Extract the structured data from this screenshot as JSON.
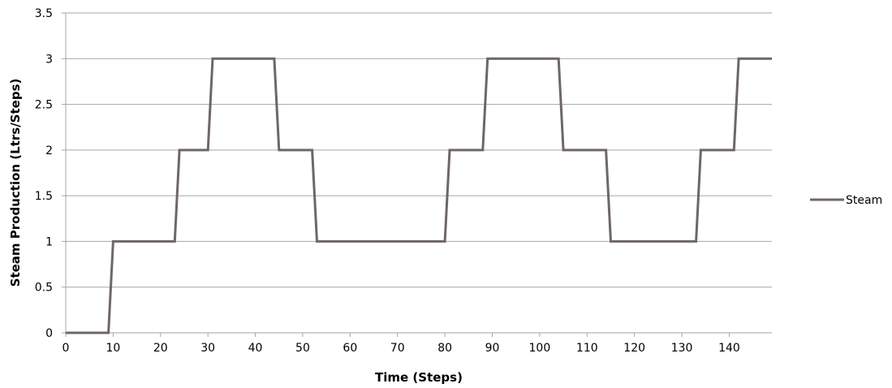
{
  "chart_data": {
    "type": "line",
    "title": "",
    "xlabel": "Time (Steps)",
    "ylabel": "Steam Production (Ltrs/Steps)",
    "xlim": [
      0,
      149
    ],
    "ylim": [
      0,
      3.5
    ],
    "x_ticks": [
      0,
      10,
      20,
      30,
      40,
      50,
      60,
      70,
      80,
      90,
      100,
      110,
      120,
      130,
      140
    ],
    "y_ticks": [
      0,
      0.5,
      1,
      1.5,
      2,
      2.5,
      3,
      3.5
    ],
    "x_tick_labels": [
      "0",
      "10",
      "20",
      "30",
      "40",
      "50",
      "60",
      "70",
      "80",
      "90",
      "100",
      "110",
      "120",
      "130",
      "140"
    ],
    "y_tick_labels": [
      "0",
      "0.5",
      "1",
      "1.5",
      "2",
      "2.5",
      "3",
      "3.5"
    ],
    "grid": "horizontal",
    "legend_position": "right",
    "colors": {
      "line": "#6f6669",
      "grid": "#a6a6a6",
      "axis": "#a6a6a6"
    },
    "series": [
      {
        "name": "Steam",
        "x": [
          0,
          9,
          10,
          23,
          24,
          30,
          31,
          44,
          45,
          52,
          53,
          80,
          81,
          88,
          89,
          104,
          105,
          114,
          115,
          133,
          134,
          141,
          142,
          149
        ],
        "y": [
          0,
          0,
          1,
          1,
          2,
          2,
          3,
          3,
          2,
          2,
          1,
          1,
          2,
          2,
          3,
          3,
          2,
          2,
          1,
          1,
          2,
          2,
          3,
          3
        ]
      }
    ]
  }
}
